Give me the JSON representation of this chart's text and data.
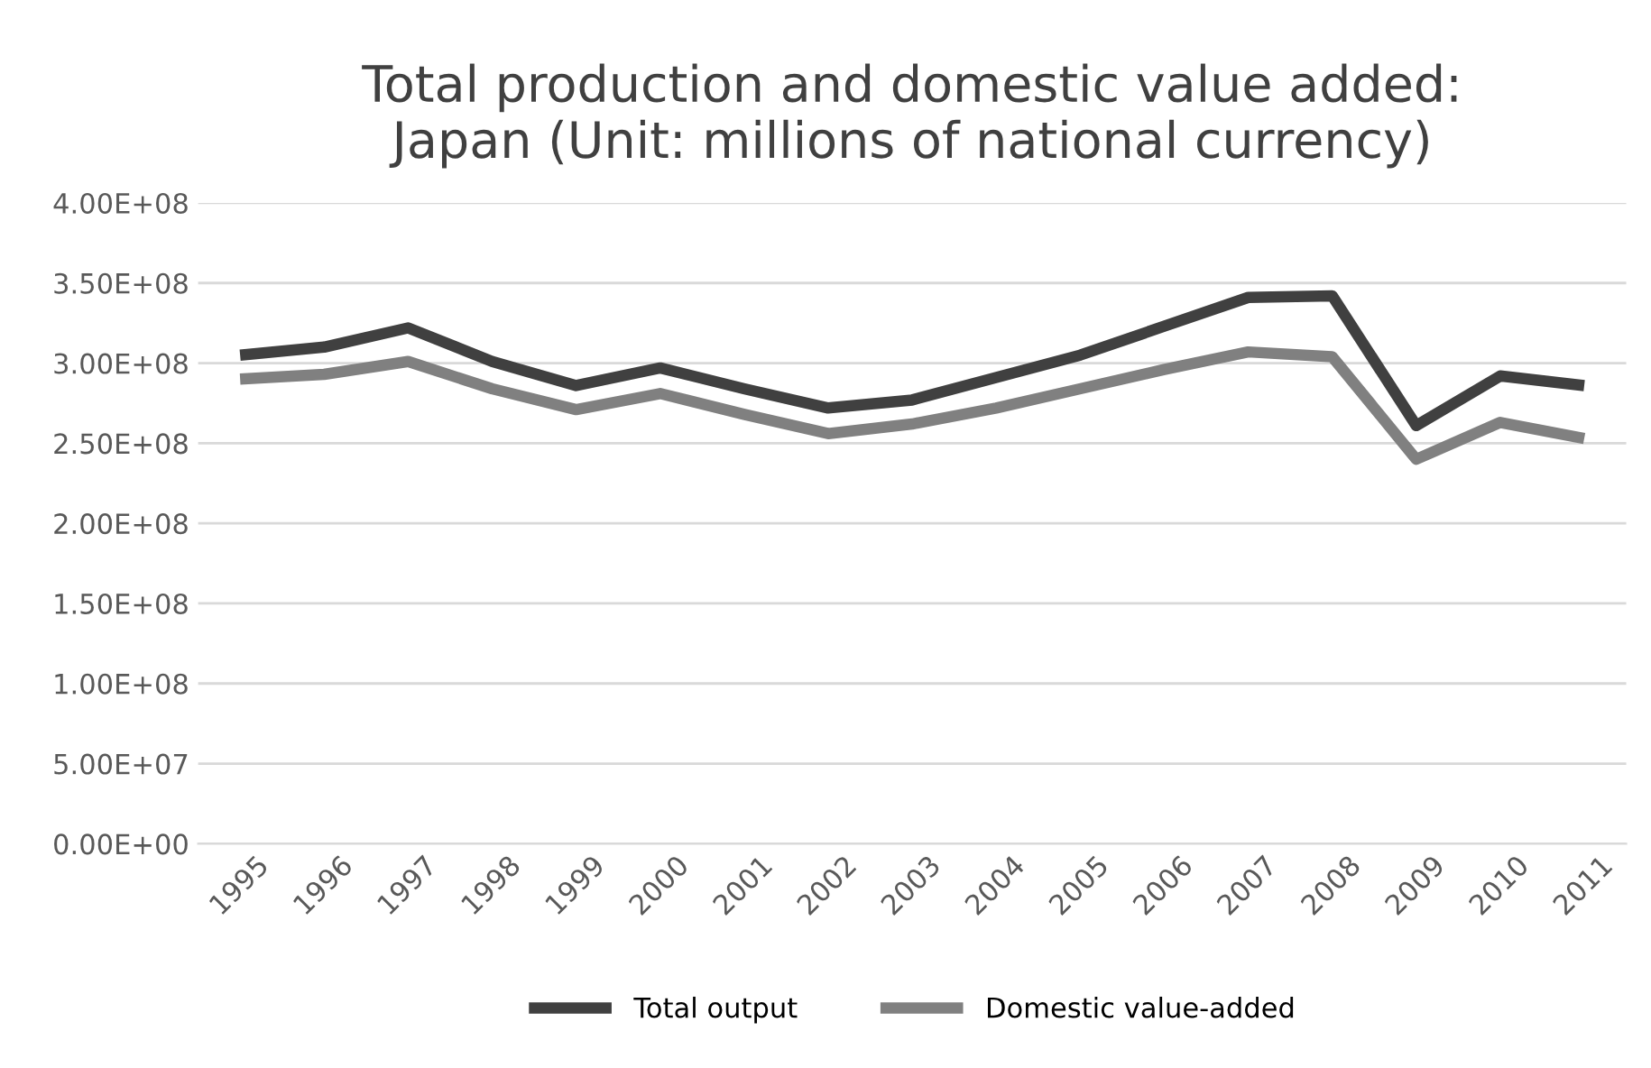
{
  "chart_data": {
    "type": "line",
    "title": "Total production and domestic value added:\nJapan (Unit: millions of national currency)",
    "categories": [
      "1995",
      "1996",
      "1997",
      "1998",
      "1999",
      "2000",
      "2001",
      "2002",
      "2003",
      "2004",
      "2005",
      "2006",
      "2007",
      "2008",
      "2009",
      "2010",
      "2011"
    ],
    "series": [
      {
        "name": "Total output",
        "color": "#404040",
        "values": [
          305000000,
          310000000,
          322000000,
          301000000,
          286000000,
          297000000,
          284000000,
          272000000,
          277000000,
          291000000,
          305000000,
          323000000,
          341000000,
          342000000,
          261000000,
          292000000,
          286000000
        ]
      },
      {
        "name": "Domestic value-added",
        "color": "#808080",
        "values": [
          290000000,
          293000000,
          301000000,
          284000000,
          271000000,
          281000000,
          268000000,
          256000000,
          262000000,
          272000000,
          284000000,
          296000000,
          307000000,
          304000000,
          240000000,
          263000000,
          253000000
        ]
      }
    ],
    "ylim": [
      0,
      400000000
    ],
    "yticks": [
      {
        "value": 0,
        "label": "0.00E+00"
      },
      {
        "value": 50000000,
        "label": "5.00E+07"
      },
      {
        "value": 100000000,
        "label": "1.00E+08"
      },
      {
        "value": 150000000,
        "label": "1.50E+08"
      },
      {
        "value": 200000000,
        "label": "2.00E+08"
      },
      {
        "value": 250000000,
        "label": "2.50E+08"
      },
      {
        "value": 300000000,
        "label": "3.00E+08"
      },
      {
        "value": 350000000,
        "label": "3.50E+08"
      },
      {
        "value": 400000000,
        "label": "4.00E+08"
      }
    ],
    "grid": "y",
    "legend": "bottom",
    "marker": "none",
    "line_style": "solid"
  }
}
